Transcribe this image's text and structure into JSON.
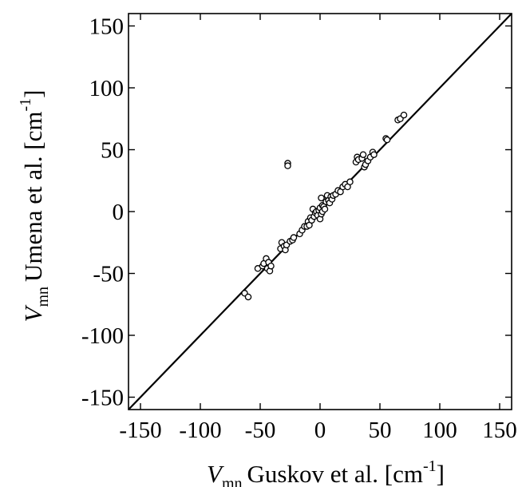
{
  "chart_data": {
    "type": "scatter",
    "xlabel": {
      "var": "V",
      "sub": "mn",
      "text": "Guskov et al. [cm",
      "sup": "-1",
      "close": "]"
    },
    "ylabel": {
      "var": "V",
      "sub": "mn",
      "text": "Umena et al. [cm",
      "sup": "-1",
      "close": "]"
    },
    "xlim": [
      -160,
      160
    ],
    "ylim": [
      -160,
      160
    ],
    "xticks": [
      -150,
      -100,
      -50,
      0,
      50,
      100,
      150
    ],
    "yticks": [
      -150,
      -100,
      -50,
      0,
      50,
      100,
      150
    ],
    "x_tick_labels": [
      "-150",
      "-100",
      "-50",
      "0",
      "50",
      "100",
      "150"
    ],
    "y_tick_labels": [
      "-150",
      "-100",
      "-50",
      "0",
      "50",
      "100",
      "150"
    ],
    "grid": false,
    "reference_line": {
      "from": [
        -160,
        -160
      ],
      "to": [
        160,
        160
      ]
    },
    "marker": "open-circle",
    "points": [
      [
        -63,
        -66
      ],
      [
        -60,
        -69
      ],
      [
        -52,
        -46
      ],
      [
        -48,
        -44
      ],
      [
        -47,
        -42
      ],
      [
        -45,
        -38
      ],
      [
        -44,
        -46
      ],
      [
        -43,
        -41
      ],
      [
        -42,
        -48
      ],
      [
        -41,
        -44
      ],
      [
        -33,
        -30
      ],
      [
        -32,
        -25
      ],
      [
        -30,
        -28
      ],
      [
        -29,
        -31
      ],
      [
        -28,
        -27
      ],
      [
        -27,
        39
      ],
      [
        -27,
        37
      ],
      [
        -25,
        -24
      ],
      [
        -23,
        -23
      ],
      [
        -22,
        -21
      ],
      [
        -17,
        -18
      ],
      [
        -15,
        -15
      ],
      [
        -13,
        -12
      ],
      [
        -11,
        -12
      ],
      [
        -10,
        -8
      ],
      [
        -9,
        -11
      ],
      [
        -8,
        -5
      ],
      [
        -7,
        -7
      ],
      [
        -6,
        2
      ],
      [
        -5,
        -4
      ],
      [
        -4,
        -1
      ],
      [
        -3,
        0
      ],
      [
        -2,
        -3
      ],
      [
        -1,
        1
      ],
      [
        0,
        -6
      ],
      [
        0,
        3
      ],
      [
        1,
        11
      ],
      [
        1,
        -2
      ],
      [
        2,
        0
      ],
      [
        2,
        5
      ],
      [
        3,
        4
      ],
      [
        4,
        2
      ],
      [
        5,
        8
      ],
      [
        6,
        13
      ],
      [
        7,
        9
      ],
      [
        8,
        7
      ],
      [
        9,
        12
      ],
      [
        10,
        10
      ],
      [
        11,
        13
      ],
      [
        13,
        14
      ],
      [
        15,
        17
      ],
      [
        17,
        16
      ],
      [
        19,
        20
      ],
      [
        21,
        22
      ],
      [
        23,
        20
      ],
      [
        25,
        24
      ],
      [
        30,
        40
      ],
      [
        31,
        44
      ],
      [
        32,
        42
      ],
      [
        35,
        43
      ],
      [
        36,
        46
      ],
      [
        37,
        36
      ],
      [
        38,
        38
      ],
      [
        40,
        41
      ],
      [
        42,
        44
      ],
      [
        44,
        48
      ],
      [
        45,
        46
      ],
      [
        55,
        59
      ],
      [
        56,
        58
      ],
      [
        65,
        74
      ],
      [
        67,
        75
      ],
      [
        70,
        78
      ]
    ]
  }
}
